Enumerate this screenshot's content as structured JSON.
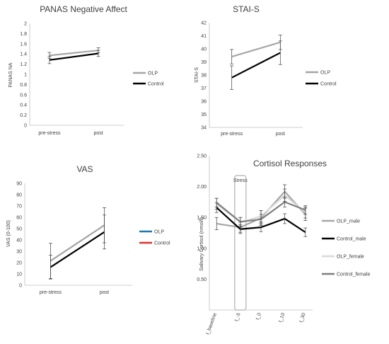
{
  "colors": {
    "olp": "#a6a6a6",
    "control": "#000000",
    "err": "#404040",
    "axis": "#bfbfbf",
    "olp_blue": "#1f77b4",
    "control_red": "#e03030",
    "control_female": "#7f7f7f",
    "olp_female": "#d9d9d9",
    "stress_box": "#bfbfbf"
  },
  "chart_data": [
    {
      "id": "panas",
      "type": "line",
      "title": "PANAS Negative Affect",
      "xlabel": "",
      "ylabel": "PANAS NA",
      "categories": [
        "pre-stress",
        "post"
      ],
      "ylim": [
        0,
        2
      ],
      "yticks": [
        "0",
        "0.2",
        "0.4",
        "0.6",
        "0.8",
        "1",
        "1.2",
        "1.4",
        "1.6",
        "1.8",
        "2"
      ],
      "legend_position": "right",
      "series": [
        {
          "name": "OLP",
          "color": "#a6a6a6",
          "values": [
            1.37,
            1.47
          ],
          "err": [
            0.06,
            0.05
          ]
        },
        {
          "name": "Control",
          "color": "#000000",
          "values": [
            1.28,
            1.41
          ],
          "err": [
            0.07,
            0.06
          ]
        }
      ]
    },
    {
      "id": "stai",
      "type": "line",
      "title": "STAI-S",
      "xlabel": "",
      "ylabel": "STAI-S",
      "categories": [
        "pre-stress",
        "post"
      ],
      "ylim": [
        34,
        42
      ],
      "yticks": [
        "34",
        "35",
        "36",
        "37",
        "38",
        "39",
        "40",
        "41",
        "42"
      ],
      "legend_position": "right",
      "series": [
        {
          "name": "OLP",
          "color": "#a6a6a6",
          "values": [
            39.4,
            40.5
          ],
          "err": [
            0.55,
            0.55
          ]
        },
        {
          "name": "Control",
          "color": "#000000",
          "values": [
            37.8,
            39.7
          ],
          "err": [
            0.9,
            0.9
          ]
        }
      ]
    },
    {
      "id": "vas",
      "type": "line",
      "title": "VAS",
      "xlabel": "",
      "ylabel": "VAS (0-100)",
      "categories": [
        "pre-stress",
        "post"
      ],
      "ylim": [
        0,
        90
      ],
      "yticks": [
        "0",
        "10",
        "20",
        "30",
        "40",
        "50",
        "60",
        "70",
        "80",
        "90"
      ],
      "legend_position": "right",
      "legend": [
        {
          "name": "OLP",
          "color": "#1f77b4"
        },
        {
          "name": "Control",
          "color": "#e03030"
        }
      ],
      "series": [
        {
          "name": "OLP",
          "color": "#a6a6a6",
          "values": [
            21.5,
            53
          ],
          "err": [
            15.5,
            15.5
          ]
        },
        {
          "name": "Control",
          "color": "#000000",
          "values": [
            16,
            47
          ],
          "err": [
            10.5,
            15
          ]
        }
      ]
    },
    {
      "id": "cortisol",
      "type": "line",
      "title": "Cortisol Responses",
      "xlabel": "",
      "ylabel": "Salivary Cortisol (nmol/l)",
      "categories": [
        "t_baseline",
        "t_-5",
        "t_0",
        "t_10",
        "t_30"
      ],
      "ylim": [
        0,
        2.5
      ],
      "yticks": [
        "0.50",
        "1.00",
        "1.50",
        "2.00",
        "2.50"
      ],
      "annotation": "Stress",
      "legend_position": "right",
      "series": [
        {
          "name": "OLP_male",
          "color": "#a6a6a6",
          "values": [
            1.4,
            1.34,
            1.49,
            1.92,
            1.55
          ],
          "err": [
            0.1,
            0.08,
            0.12,
            0.11,
            0.1
          ]
        },
        {
          "name": "Control_male",
          "color": "#000000",
          "values": [
            1.66,
            1.31,
            1.34,
            1.48,
            1.26
          ],
          "err": [
            0.08,
            0.07,
            0.07,
            0.08,
            0.07
          ]
        },
        {
          "name": "OLP_female",
          "color": "#d9d9d9",
          "values": [
            1.72,
            1.42,
            1.52,
            1.86,
            1.58
          ],
          "err": [
            0.09,
            0.08,
            0.09,
            0.1,
            0.09
          ]
        },
        {
          "name": "Control_female",
          "color": "#7f7f7f",
          "values": [
            1.74,
            1.43,
            1.47,
            1.75,
            1.62
          ],
          "err": [
            0.07,
            0.07,
            0.08,
            0.08,
            0.07
          ]
        }
      ]
    }
  ]
}
